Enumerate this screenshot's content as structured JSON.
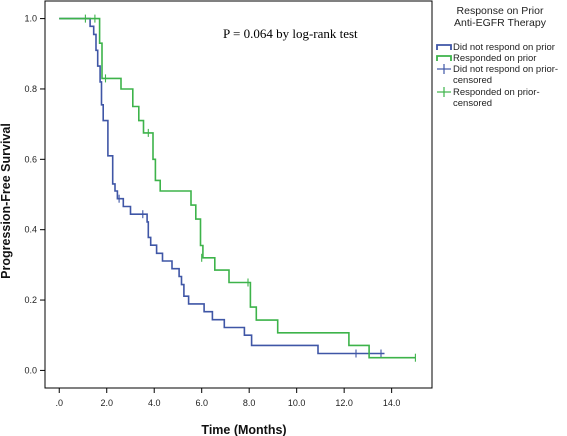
{
  "chart_data": {
    "type": "line",
    "title": "",
    "xlabel": "Time (Months)",
    "ylabel": "Progression-Free Survival",
    "xlim": [
      -0.6,
      15.7
    ],
    "ylim": [
      -0.05,
      1.05
    ],
    "x_ticks": [
      0,
      2,
      4,
      6,
      8,
      10,
      12,
      14
    ],
    "x_tick_labels": [
      ".0",
      "2.0",
      "4.0",
      "6.0",
      "8.0",
      "10.0",
      "12.0",
      "14.0"
    ],
    "y_ticks": [
      0,
      0.2,
      0.4,
      0.6,
      0.8,
      1.0
    ],
    "y_tick_labels": [
      "0.0",
      "0.2",
      "0.4",
      "0.6",
      "0.8",
      "1.0"
    ],
    "annotation": "P = 0.064 by log-rank test",
    "grid": false,
    "legend_position": "right",
    "legend": {
      "title_lines": [
        "Response on Prior",
        "Anti-EGFR Therapy"
      ],
      "entries": [
        {
          "label_lines": [
            "Did not respond on prior"
          ],
          "kind": "line",
          "color": "#3f56a6"
        },
        {
          "label_lines": [
            "Responded on prior"
          ],
          "kind": "line",
          "color": "#3db34a"
        },
        {
          "label_lines": [
            "Did not respond on prior-",
            "censored"
          ],
          "kind": "censor",
          "color": "#3f56a6"
        },
        {
          "label_lines": [
            "Responded on prior-",
            "censored"
          ],
          "kind": "censor",
          "color": "#3db34a"
        }
      ]
    },
    "series": [
      {
        "name": "Did not respond on prior",
        "color": "#3f56a6",
        "steps": [
          [
            0.0,
            1.0
          ],
          [
            1.3,
            0.978
          ],
          [
            1.45,
            0.955
          ],
          [
            1.55,
            0.91
          ],
          [
            1.62,
            0.865
          ],
          [
            1.72,
            0.82
          ],
          [
            1.78,
            0.755
          ],
          [
            1.85,
            0.71
          ],
          [
            2.05,
            0.61
          ],
          [
            2.25,
            0.53
          ],
          [
            2.35,
            0.51
          ],
          [
            2.45,
            0.488
          ],
          [
            2.7,
            0.466
          ],
          [
            3.0,
            0.444
          ],
          [
            3.45,
            0.444
          ],
          [
            3.7,
            0.422
          ],
          [
            3.75,
            0.378
          ],
          [
            3.85,
            0.356
          ],
          [
            4.1,
            0.333
          ],
          [
            4.35,
            0.311
          ],
          [
            4.75,
            0.289
          ],
          [
            5.05,
            0.267
          ],
          [
            5.15,
            0.244
          ],
          [
            5.25,
            0.211
          ],
          [
            5.45,
            0.189
          ],
          [
            6.1,
            0.167
          ],
          [
            6.45,
            0.144
          ],
          [
            6.95,
            0.122
          ],
          [
            7.8,
            0.1
          ],
          [
            8.1,
            0.071
          ],
          [
            10.9,
            0.048
          ],
          [
            13.7,
            0.048
          ]
        ],
        "end_x": 13.7,
        "censored": [
          [
            2.52,
            0.488
          ],
          [
            3.52,
            0.444
          ],
          [
            12.5,
            0.048
          ],
          [
            13.55,
            0.048
          ]
        ]
      },
      {
        "name": "Responded on prior",
        "color": "#3db34a",
        "steps": [
          [
            0.0,
            1.0
          ],
          [
            1.7,
            0.93
          ],
          [
            1.8,
            0.83
          ],
          [
            2.6,
            0.8
          ],
          [
            3.1,
            0.75
          ],
          [
            3.35,
            0.71
          ],
          [
            3.55,
            0.675
          ],
          [
            3.95,
            0.6
          ],
          [
            4.05,
            0.54
          ],
          [
            4.25,
            0.51
          ],
          [
            5.55,
            0.47
          ],
          [
            5.75,
            0.43
          ],
          [
            5.95,
            0.355
          ],
          [
            6.05,
            0.32
          ],
          [
            6.55,
            0.285
          ],
          [
            7.15,
            0.25
          ],
          [
            8.05,
            0.18
          ],
          [
            8.3,
            0.143
          ],
          [
            9.2,
            0.107
          ],
          [
            12.2,
            0.071
          ],
          [
            13.05,
            0.036
          ],
          [
            15.0,
            0.036
          ]
        ],
        "end_x": 15.0,
        "censored": [
          [
            1.1,
            1.0
          ],
          [
            1.5,
            1.0
          ],
          [
            1.95,
            0.83
          ],
          [
            3.75,
            0.675
          ],
          [
            6.0,
            0.32
          ],
          [
            7.95,
            0.25
          ],
          [
            15.0,
            0.036
          ]
        ]
      }
    ]
  }
}
